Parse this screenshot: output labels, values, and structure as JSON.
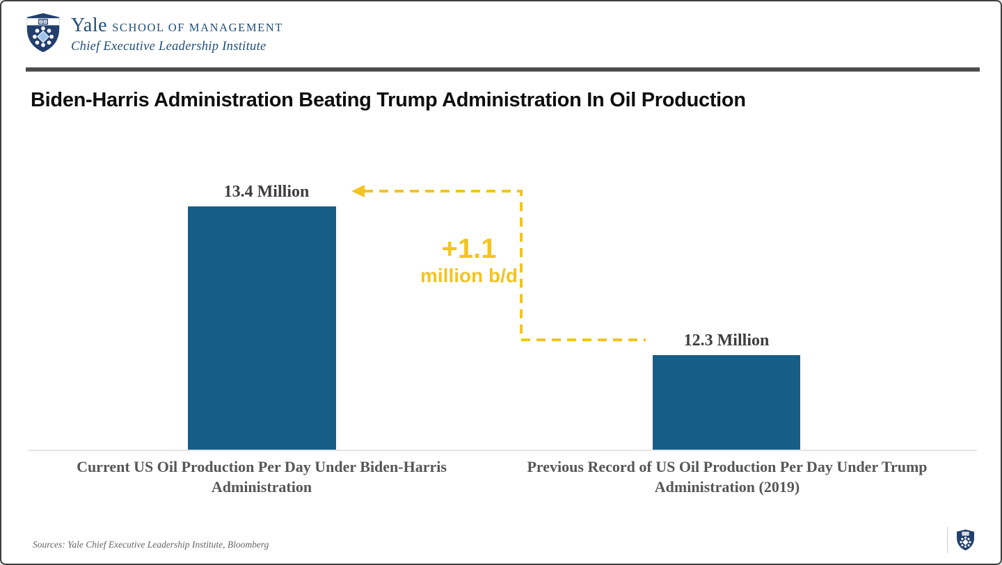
{
  "header": {
    "wordmark": "Yale",
    "school": "SCHOOL OF MANAGEMENT",
    "institute": "Chief Executive Leadership Institute"
  },
  "title": "Biden-Harris Administration Beating Trump Administration In Oil Production",
  "chart_data": {
    "type": "bar",
    "title": "Biden-Harris Administration Beating Trump Administration In Oil Production",
    "categories": [
      "Current US Oil Production Per Day Under Biden-Harris Administration",
      "Previous Record of US Oil Production Per Day Under Trump Administration (2019)"
    ],
    "values": [
      13.4,
      12.3
    ],
    "value_labels": [
      "13.4 Million",
      "12.3 Million"
    ],
    "unit": "million barrels per day",
    "annotation": {
      "line1": "+1.1",
      "line2": "million b/d"
    },
    "ylim": [
      11.6,
      13.4
    ],
    "grid": false,
    "legend": false,
    "xlabel": "",
    "ylabel": "",
    "colors": {
      "bar": "#175E86",
      "accent": "#F3C41F",
      "navy": "#1F4E79",
      "divider": "#4D4D4D",
      "category_label": "#565656"
    }
  },
  "footer": {
    "sources": "Sources: Yale Chief Executive Leadership Institute, Bloomberg"
  },
  "icons": {
    "header_logo": "yale-som-shield",
    "footer_logo": "yale-som-shield"
  }
}
